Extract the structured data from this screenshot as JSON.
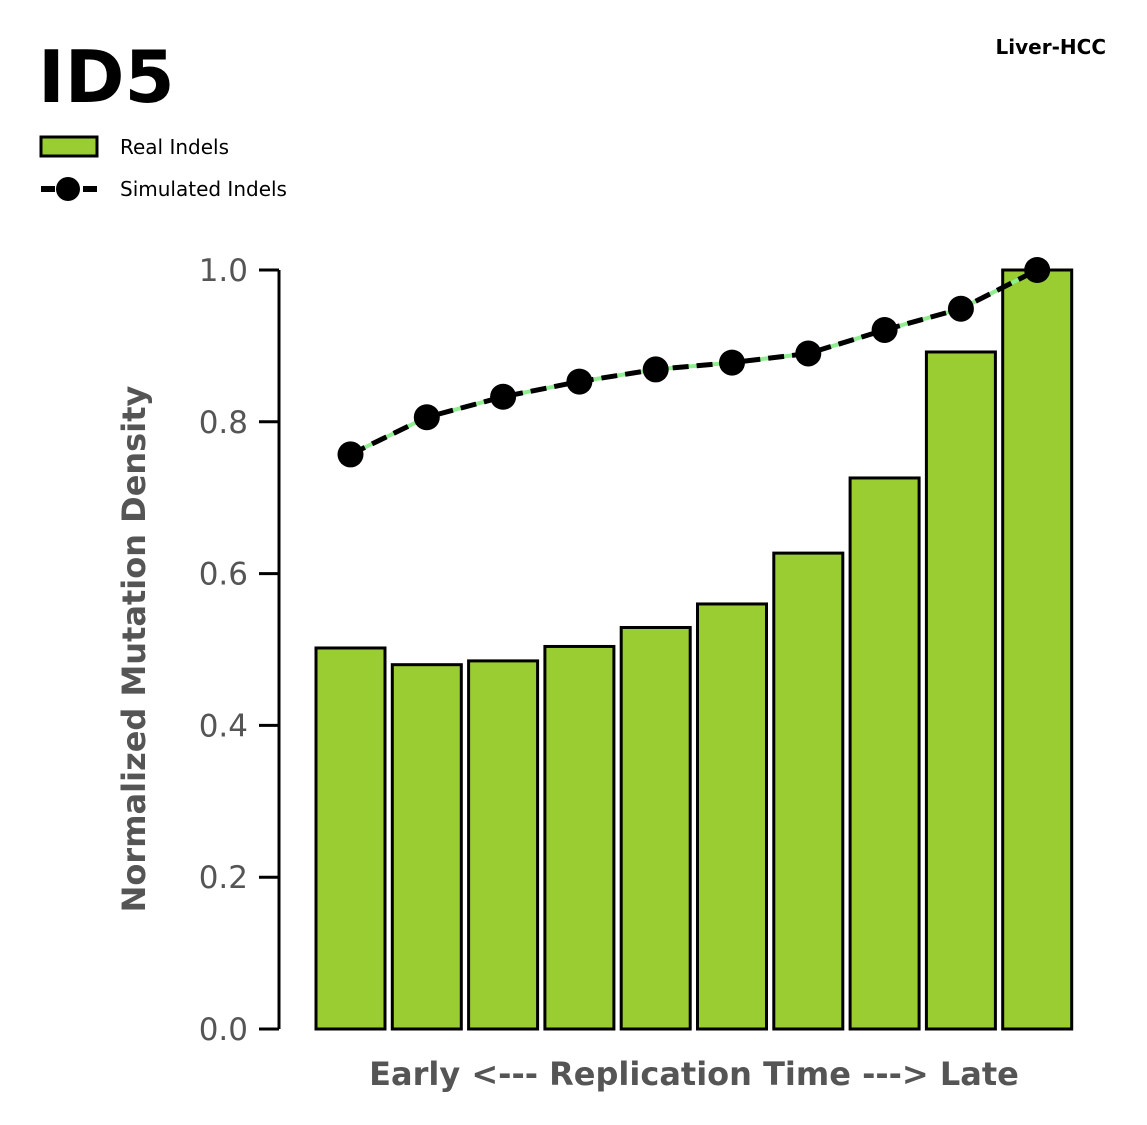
{
  "title": "ID5",
  "subtitle": "Liver-HCC",
  "chart_data": {
    "type": "bar",
    "xlabel": "Early <--- Replication Time ---> Late",
    "ylabel": "Normalized Mutation Density",
    "ylim": [
      0,
      1.0
    ],
    "yticks": [
      "0.0",
      "0.2",
      "0.4",
      "0.6",
      "0.8",
      "1.0"
    ],
    "grid": false,
    "legend_placement": "top-left",
    "series": [
      {
        "name": "Real Indels",
        "kind": "bar",
        "color": "#9acd32",
        "values": [
          0.502,
          0.48,
          0.485,
          0.504,
          0.529,
          0.56,
          0.627,
          0.726,
          0.892,
          1.0
        ]
      },
      {
        "name": "Simulated Indels",
        "kind": "line",
        "color": "#000000",
        "connector_color": "#90ee90",
        "values": [
          0.757,
          0.806,
          0.833,
          0.853,
          0.869,
          0.878,
          0.89,
          0.921,
          0.949,
          1.0
        ]
      }
    ]
  }
}
